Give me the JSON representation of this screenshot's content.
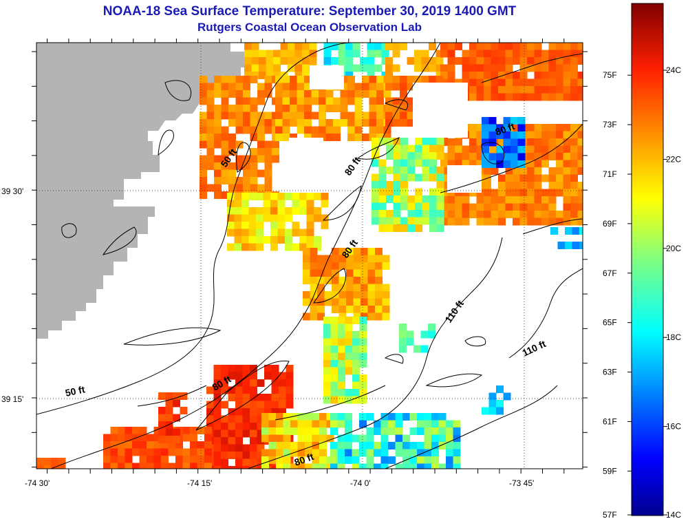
{
  "header": {
    "title": "NOAA-18 Sea Surface Temperature:  September 30, 2019 1400 GMT",
    "subtitle": "Rutgers Coastal Ocean Observation Lab"
  },
  "map": {
    "x_ticks": [
      "-74 30'",
      "-74 15'",
      "-74 0'",
      "-73 45'"
    ],
    "y_ticks": [
      "39 30'",
      "39 15'"
    ],
    "contour_labels": [
      "50 ft",
      "50 ft",
      "80 ft",
      "80 ft",
      "80 ft",
      "80 ft",
      "80 ft",
      "110 ft",
      "110 ft"
    ]
  },
  "colorbar": {
    "fahrenheit": [
      "75F",
      "73F",
      "71F",
      "69F",
      "67F",
      "65F",
      "63F",
      "61F",
      "59F",
      "57F"
    ],
    "celsius": [
      "24C",
      "22C",
      "20C",
      "18C",
      "16C",
      "14C"
    ],
    "range_c": [
      14,
      25.5
    ]
  },
  "colors": {
    "land": "#b4b4b4",
    "title": "#1a1ab4"
  }
}
